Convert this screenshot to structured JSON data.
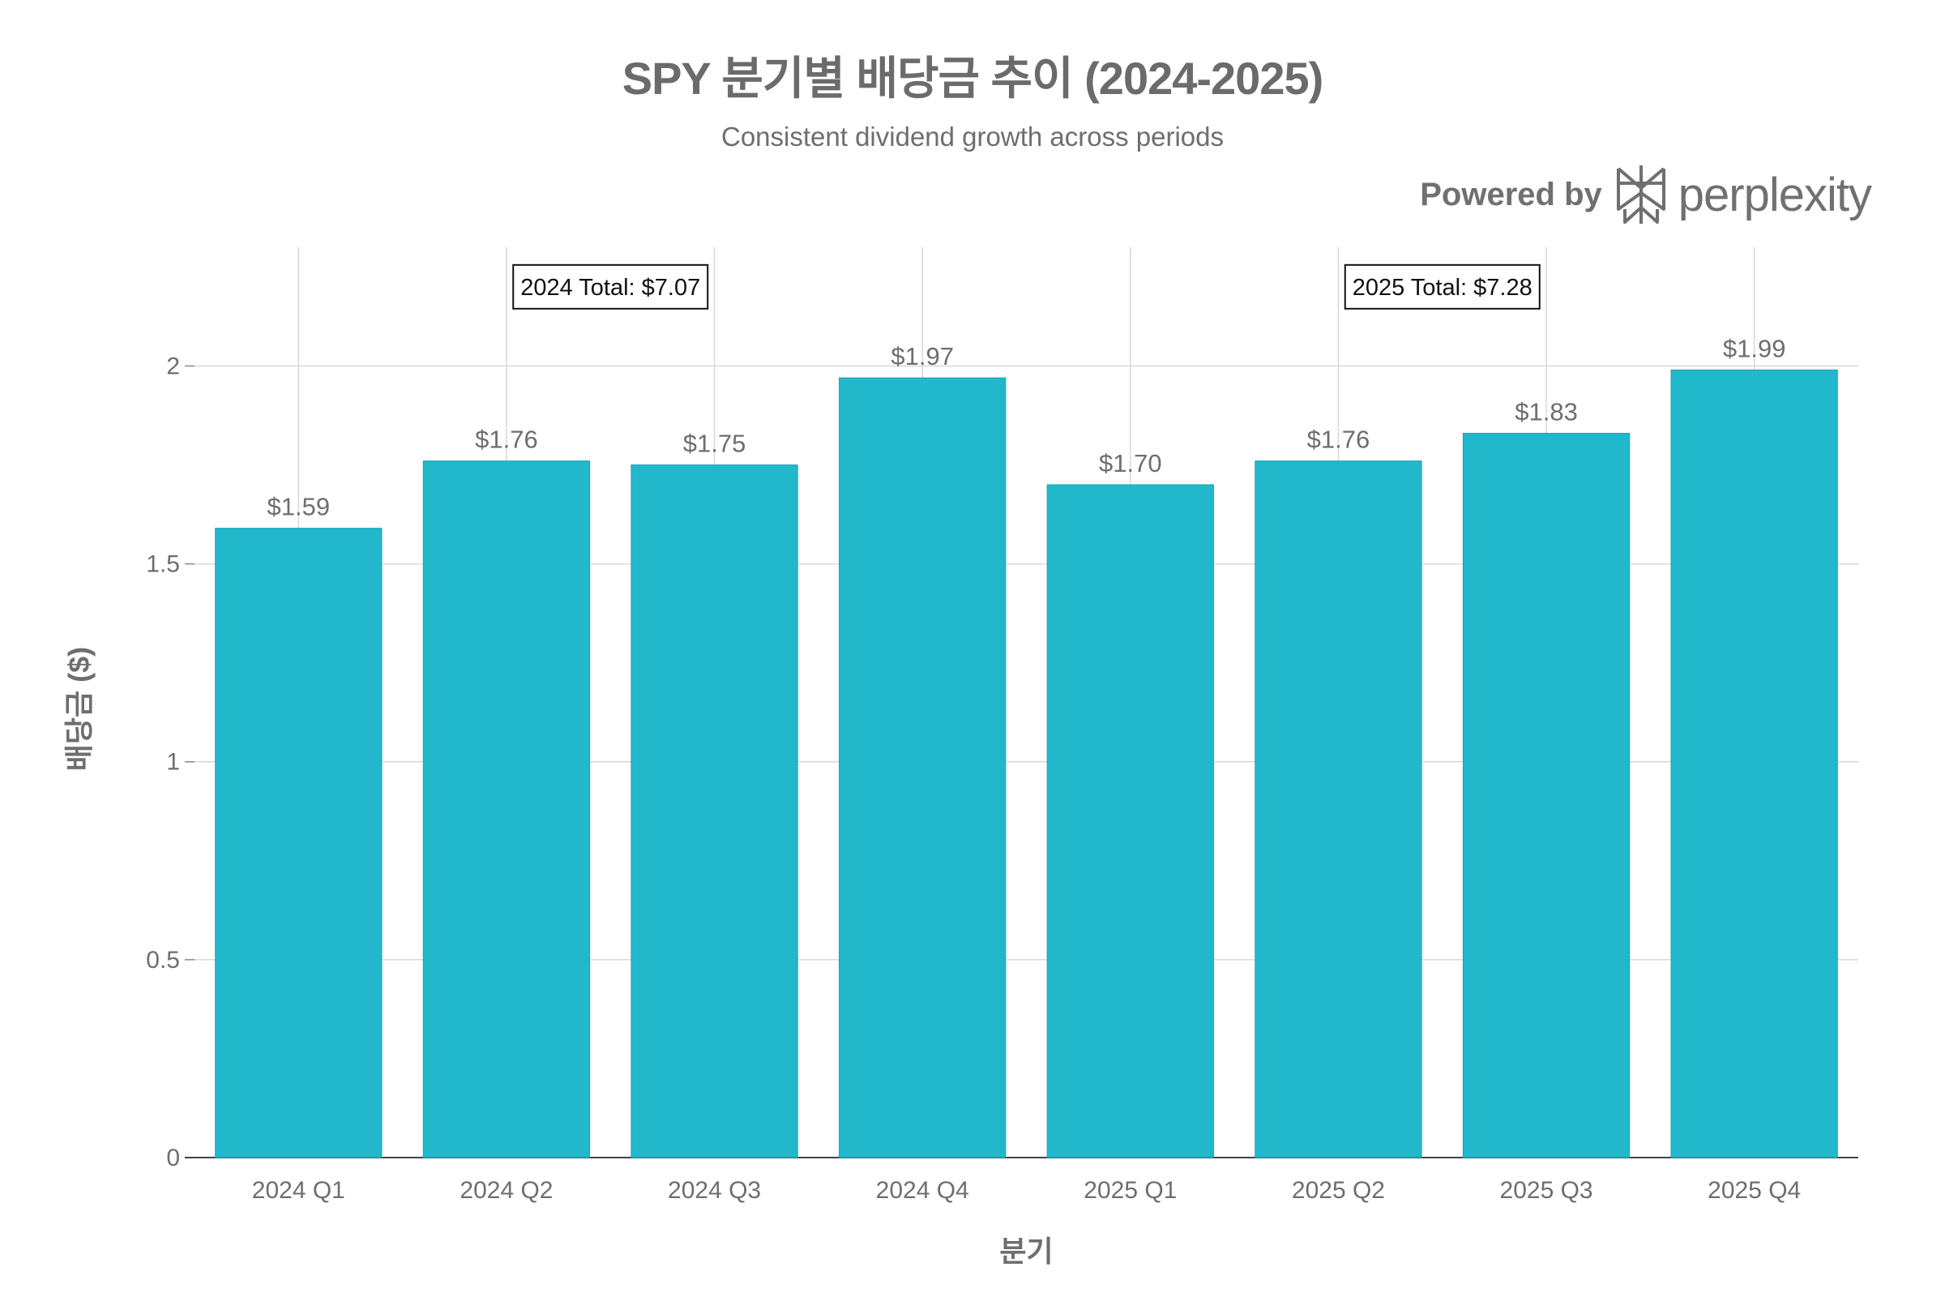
{
  "title": "SPY 분기별 배당금 추이 (2024-2025)",
  "subtitle": "Consistent dividend growth across periods",
  "brand": {
    "powered_by": "Powered by",
    "name": "perplexity"
  },
  "colors": {
    "bar": "#21b8cc",
    "bar_edge": "#1aa3b5",
    "grid": "#d9d9d9",
    "text": "#6e6e6e"
  },
  "chart_data": {
    "type": "bar",
    "title": "SPY 분기별 배당금 추이 (2024-2025)",
    "subtitle": "Consistent dividend growth across periods",
    "xlabel": "분기",
    "ylabel": "배당금 ($)",
    "categories": [
      "2024 Q1",
      "2024 Q2",
      "2024 Q3",
      "2024 Q4",
      "2025 Q1",
      "2025 Q2",
      "2025 Q3",
      "2025 Q4"
    ],
    "values": [
      1.59,
      1.76,
      1.75,
      1.97,
      1.7,
      1.76,
      1.83,
      1.99
    ],
    "value_labels": [
      "$1.59",
      "$1.76",
      "$1.75",
      "$1.97",
      "$1.70",
      "$1.76",
      "$1.83",
      "$1.99"
    ],
    "ylim": [
      0,
      2.3
    ],
    "yticks": [
      0,
      0.5,
      1,
      1.5,
      2
    ],
    "ytick_labels": [
      "0",
      "0.5",
      "1",
      "1.5",
      "2"
    ],
    "grid": true,
    "annotations": [
      {
        "text": "2024 Total: $7.07",
        "x_between": [
          "2024 Q2",
          "2024 Q3"
        ],
        "y": 2.2
      },
      {
        "text": "2025 Total: $7.28",
        "x_between": [
          "2025 Q2",
          "2025 Q3"
        ],
        "y": 2.2
      }
    ]
  }
}
